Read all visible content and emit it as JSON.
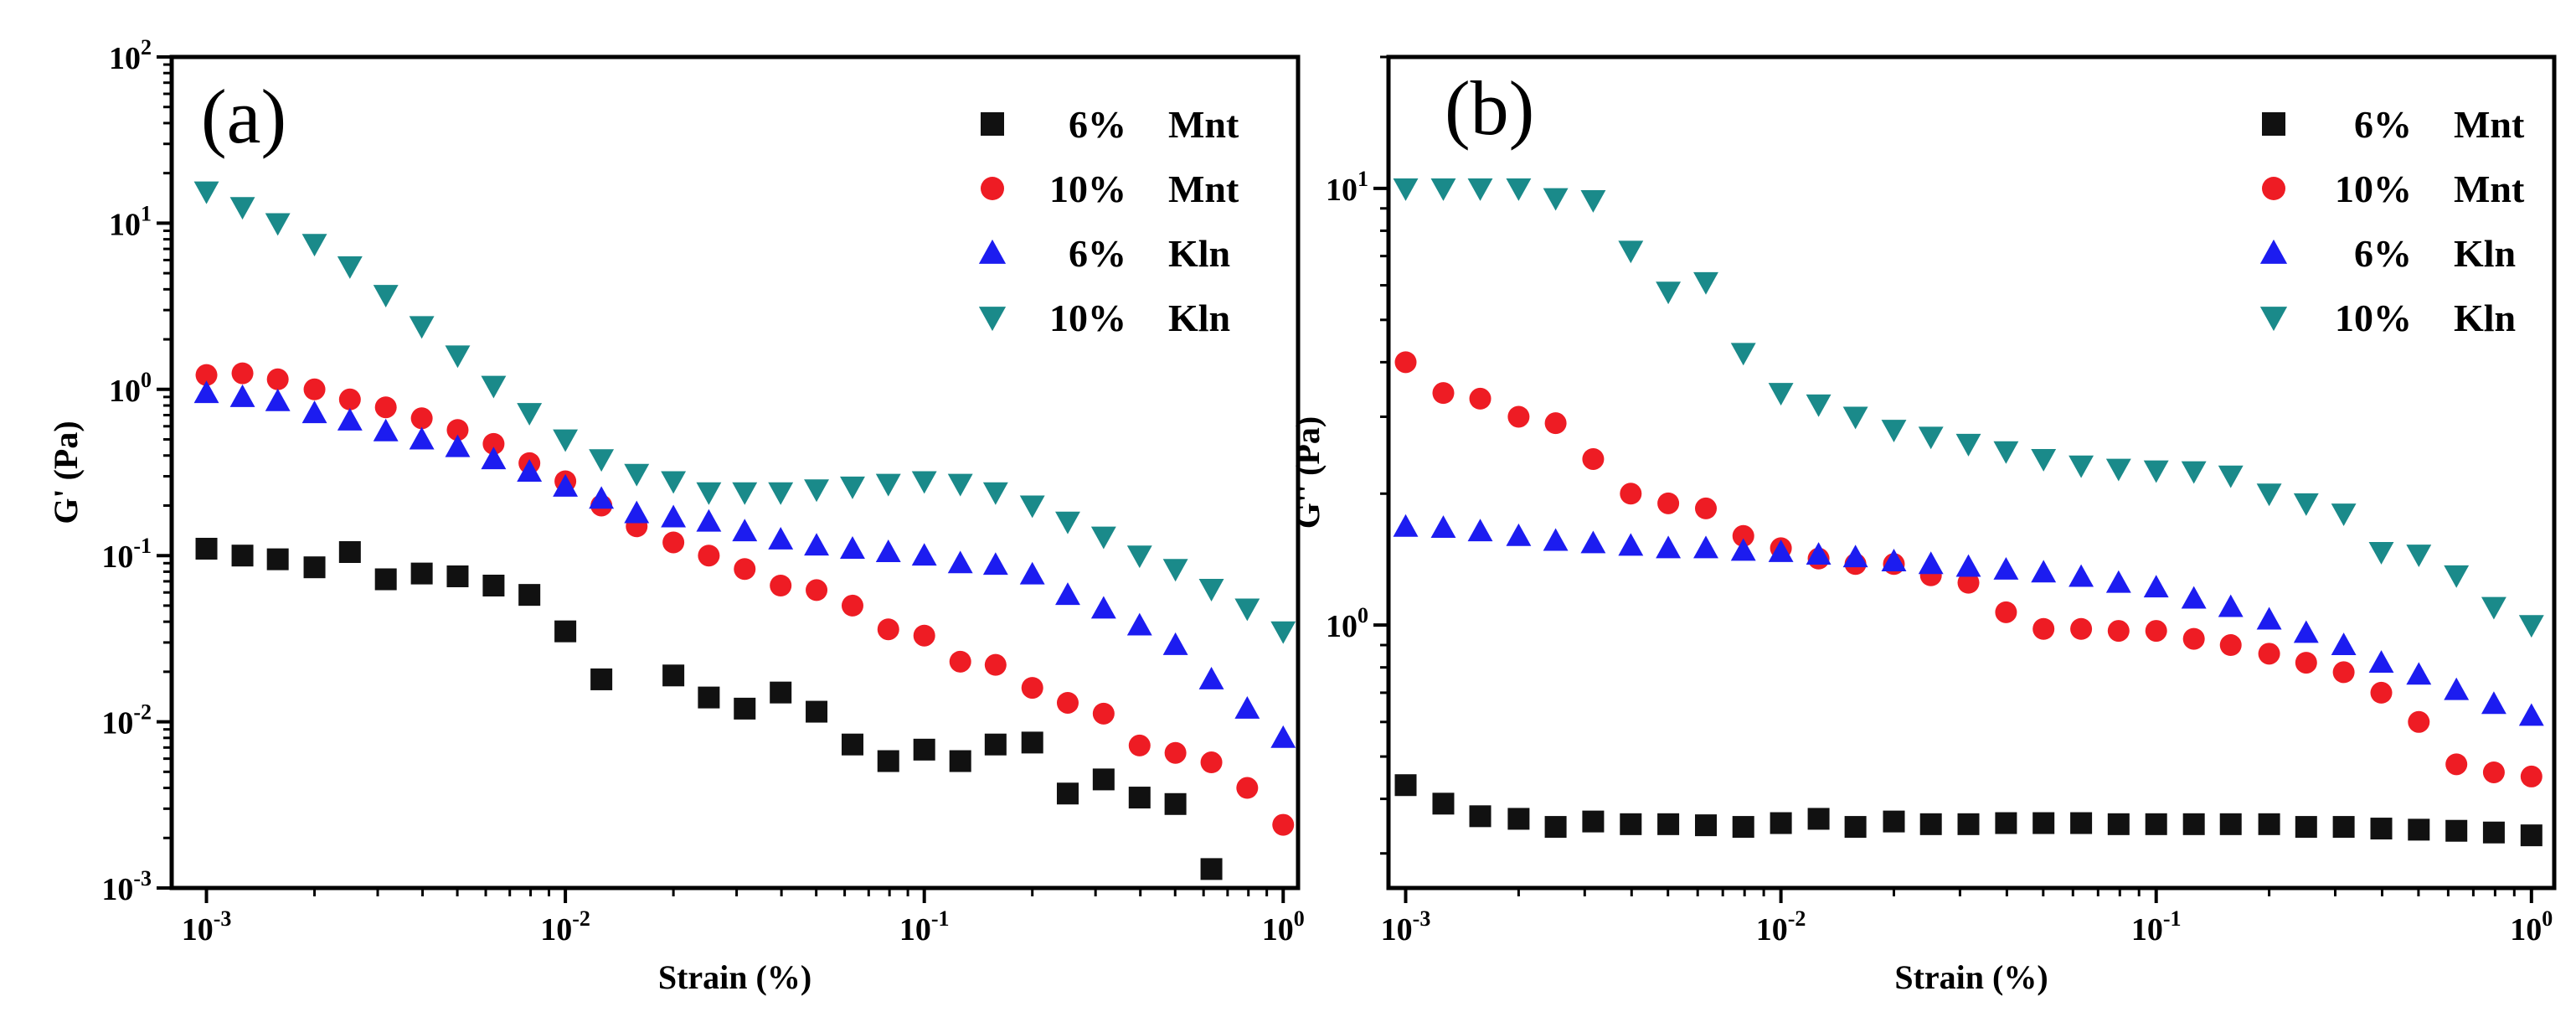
{
  "colors": {
    "mnt6": "#111111",
    "mnt10": "#ee1c24",
    "kln6": "#1c1cf0",
    "kln10": "#1a8a8a"
  },
  "chart_data": [
    {
      "type": "scatter",
      "panel_label": "(a)",
      "xlabel": "Strain (%)",
      "ylabel": "G' (Pa)",
      "xscale": "log",
      "yscale": "log",
      "xlim": [
        0.0008,
        1.1
      ],
      "ylim": [
        0.001,
        100
      ],
      "x_ticks": [
        {
          "base": "10",
          "exp": "-3"
        },
        {
          "base": "10",
          "exp": "-2"
        },
        {
          "base": "10",
          "exp": "-1"
        },
        {
          "base": "10",
          "exp": "0"
        }
      ],
      "y_ticks": [
        {
          "base": "10",
          "exp": "-3"
        },
        {
          "base": "10",
          "exp": "-2"
        },
        {
          "base": "10",
          "exp": "-1"
        },
        {
          "base": "10",
          "exp": "0"
        },
        {
          "base": "10",
          "exp": "1"
        },
        {
          "base": "10",
          "exp": "2"
        }
      ],
      "legend_position": "top-right",
      "series": [
        {
          "name": "6% Mnt",
          "pct": "6%",
          "mat": "Mnt",
          "marker": "square",
          "color": "#111111",
          "x": [
            0.001,
            0.00126,
            0.00158,
            0.002,
            0.00251,
            0.00316,
            0.00398,
            0.00501,
            0.00631,
            0.00794,
            0.01,
            0.0126,
            0.02,
            0.0251,
            0.0316,
            0.0398,
            0.0501,
            0.0631,
            0.0794,
            0.1,
            0.126,
            0.158,
            0.2,
            0.251,
            0.316,
            0.398,
            0.501,
            0.631
          ],
          "y": [
            0.11,
            0.1,
            0.095,
            0.085,
            0.105,
            0.072,
            0.078,
            0.075,
            0.066,
            0.058,
            0.035,
            0.018,
            0.019,
            0.014,
            0.012,
            0.015,
            0.0115,
            0.0073,
            0.0058,
            0.0068,
            0.0058,
            0.0073,
            0.0075,
            0.0037,
            0.0045,
            0.0035,
            0.0032,
            0.0013
          ]
        },
        {
          "name": "10% Mnt",
          "pct": "10%",
          "mat": "Mnt",
          "marker": "circle",
          "color": "#ee1c24",
          "x": [
            0.001,
            0.00126,
            0.00158,
            0.002,
            0.00251,
            0.00316,
            0.00398,
            0.00501,
            0.00631,
            0.00794,
            0.01,
            0.0126,
            0.0158,
            0.02,
            0.0251,
            0.0316,
            0.0398,
            0.0501,
            0.0631,
            0.0794,
            0.1,
            0.126,
            0.158,
            0.2,
            0.251,
            0.316,
            0.398,
            0.501,
            0.631,
            0.794,
            1.0
          ],
          "y": [
            1.22,
            1.25,
            1.15,
            1.0,
            0.87,
            0.78,
            0.67,
            0.57,
            0.47,
            0.36,
            0.28,
            0.2,
            0.15,
            0.12,
            0.1,
            0.083,
            0.066,
            0.062,
            0.05,
            0.036,
            0.033,
            0.023,
            0.022,
            0.016,
            0.013,
            0.0112,
            0.0072,
            0.0065,
            0.0057,
            0.004,
            0.0024
          ]
        },
        {
          "name": "6% Kln",
          "pct": "6%",
          "mat": "Kln",
          "marker": "triangle-up",
          "color": "#1c1cf0",
          "x": [
            0.001,
            0.00126,
            0.00158,
            0.002,
            0.00251,
            0.00316,
            0.00398,
            0.00501,
            0.00631,
            0.00794,
            0.01,
            0.0126,
            0.0158,
            0.02,
            0.0251,
            0.0316,
            0.0398,
            0.0501,
            0.0631,
            0.0794,
            0.1,
            0.126,
            0.158,
            0.2,
            0.251,
            0.316,
            0.398,
            0.501,
            0.631,
            0.794,
            1.0
          ],
          "y": [
            0.95,
            0.9,
            0.85,
            0.72,
            0.65,
            0.56,
            0.5,
            0.45,
            0.38,
            0.32,
            0.26,
            0.22,
            0.18,
            0.17,
            0.16,
            0.14,
            0.125,
            0.115,
            0.11,
            0.105,
            0.1,
            0.09,
            0.088,
            0.077,
            0.058,
            0.048,
            0.038,
            0.029,
            0.018,
            0.012,
            0.008
          ]
        },
        {
          "name": "10% Kln",
          "pct": "10%",
          "mat": "Kln",
          "marker": "triangle-down",
          "color": "#1a8a8a",
          "x": [
            0.001,
            0.00126,
            0.00158,
            0.002,
            0.00251,
            0.00316,
            0.00398,
            0.00501,
            0.00631,
            0.00794,
            0.01,
            0.0126,
            0.0158,
            0.02,
            0.0251,
            0.0316,
            0.0398,
            0.0501,
            0.0631,
            0.0794,
            0.1,
            0.126,
            0.158,
            0.2,
            0.251,
            0.316,
            0.398,
            0.501,
            0.631,
            0.794,
            1.0
          ],
          "y": [
            15.5,
            12.5,
            10.0,
            7.5,
            5.5,
            3.7,
            2.4,
            1.6,
            1.05,
            0.72,
            0.5,
            0.38,
            0.31,
            0.28,
            0.24,
            0.24,
            0.24,
            0.25,
            0.26,
            0.27,
            0.28,
            0.27,
            0.24,
            0.2,
            0.16,
            0.13,
            0.1,
            0.083,
            0.063,
            0.048,
            0.035
          ]
        }
      ]
    },
    {
      "type": "scatter",
      "panel_label": "(b)",
      "xlabel": "Strain (%)",
      "ylabel": "G'' (Pa)",
      "xscale": "log",
      "yscale": "log",
      "xlim": [
        0.0009,
        1.15
      ],
      "ylim": [
        0.25,
        20
      ],
      "x_ticks": [
        {
          "base": "10",
          "exp": "-3"
        },
        {
          "base": "10",
          "exp": "-2"
        },
        {
          "base": "10",
          "exp": "-1"
        },
        {
          "base": "10",
          "exp": "0"
        }
      ],
      "y_ticks": [
        {
          "base": "10",
          "exp": "0"
        },
        {
          "base": "10",
          "exp": "1"
        }
      ],
      "legend_position": "top-right",
      "series": [
        {
          "name": "6% Mnt",
          "pct": "6%",
          "mat": "Mnt",
          "marker": "square",
          "color": "#111111",
          "x": [
            0.001,
            0.00126,
            0.00158,
            0.002,
            0.00251,
            0.00316,
            0.00398,
            0.00501,
            0.00631,
            0.00794,
            0.01,
            0.0126,
            0.0158,
            0.02,
            0.0251,
            0.0316,
            0.0398,
            0.0501,
            0.0631,
            0.0794,
            0.1,
            0.126,
            0.158,
            0.2,
            0.251,
            0.316,
            0.398,
            0.501,
            0.631,
            0.794,
            1.0
          ],
          "y": [
            0.43,
            0.39,
            0.365,
            0.36,
            0.345,
            0.355,
            0.35,
            0.35,
            0.348,
            0.345,
            0.352,
            0.36,
            0.345,
            0.355,
            0.35,
            0.35,
            0.352,
            0.352,
            0.352,
            0.35,
            0.35,
            0.35,
            0.35,
            0.35,
            0.345,
            0.345,
            0.342,
            0.34,
            0.338,
            0.335,
            0.33
          ]
        },
        {
          "name": "10% Mnt",
          "pct": "10%",
          "mat": "Mnt",
          "marker": "circle",
          "color": "#ee1c24",
          "x": [
            0.001,
            0.00126,
            0.00158,
            0.002,
            0.00251,
            0.00316,
            0.00398,
            0.00501,
            0.00631,
            0.00794,
            0.01,
            0.0126,
            0.0158,
            0.02,
            0.0251,
            0.0316,
            0.0398,
            0.0501,
            0.0631,
            0.0794,
            0.1,
            0.126,
            0.158,
            0.2,
            0.251,
            0.316,
            0.398,
            0.501,
            0.631,
            0.794,
            1.0
          ],
          "y": [
            4.0,
            3.4,
            3.3,
            3.0,
            2.9,
            2.4,
            2.0,
            1.9,
            1.85,
            1.6,
            1.5,
            1.42,
            1.38,
            1.38,
            1.3,
            1.25,
            1.07,
            0.98,
            0.98,
            0.97,
            0.97,
            0.93,
            0.9,
            0.86,
            0.82,
            0.78,
            0.7,
            0.6,
            0.48,
            0.46,
            0.45
          ]
        },
        {
          "name": "6% Kln",
          "pct": "6%",
          "mat": "Kln",
          "marker": "triangle-up",
          "color": "#1c1cf0",
          "x": [
            0.001,
            0.00126,
            0.00158,
            0.002,
            0.00251,
            0.00316,
            0.00398,
            0.00501,
            0.00631,
            0.00794,
            0.01,
            0.0126,
            0.0158,
            0.02,
            0.0251,
            0.0316,
            0.0398,
            0.0501,
            0.0631,
            0.0794,
            0.1,
            0.126,
            0.158,
            0.2,
            0.251,
            0.316,
            0.398,
            0.501,
            0.631,
            0.794,
            1.0
          ],
          "y": [
            1.68,
            1.67,
            1.64,
            1.6,
            1.56,
            1.54,
            1.52,
            1.5,
            1.5,
            1.48,
            1.47,
            1.45,
            1.43,
            1.4,
            1.38,
            1.36,
            1.34,
            1.32,
            1.29,
            1.25,
            1.22,
            1.15,
            1.1,
            1.03,
            0.96,
            0.9,
            0.82,
            0.77,
            0.71,
            0.66,
            0.62
          ]
        },
        {
          "name": "10% Kln",
          "pct": "10%",
          "mat": "Kln",
          "marker": "triangle-down",
          "color": "#1a8a8a",
          "x": [
            0.001,
            0.00126,
            0.00158,
            0.002,
            0.00251,
            0.00316,
            0.00398,
            0.00501,
            0.00631,
            0.00794,
            0.01,
            0.0126,
            0.0158,
            0.02,
            0.0251,
            0.0316,
            0.0398,
            0.0501,
            0.0631,
            0.0794,
            0.1,
            0.126,
            0.158,
            0.2,
            0.251,
            0.316,
            0.398,
            0.501,
            0.631,
            0.794,
            1.0
          ],
          "y": [
            10.0,
            10.0,
            10.0,
            10.0,
            9.5,
            9.4,
            7.2,
            5.8,
            6.1,
            4.2,
            3.4,
            3.2,
            3.0,
            2.8,
            2.7,
            2.6,
            2.5,
            2.4,
            2.32,
            2.28,
            2.26,
            2.25,
            2.2,
            2.0,
            1.9,
            1.8,
            1.47,
            1.45,
            1.3,
            1.1,
            1.0
          ]
        }
      ]
    }
  ]
}
